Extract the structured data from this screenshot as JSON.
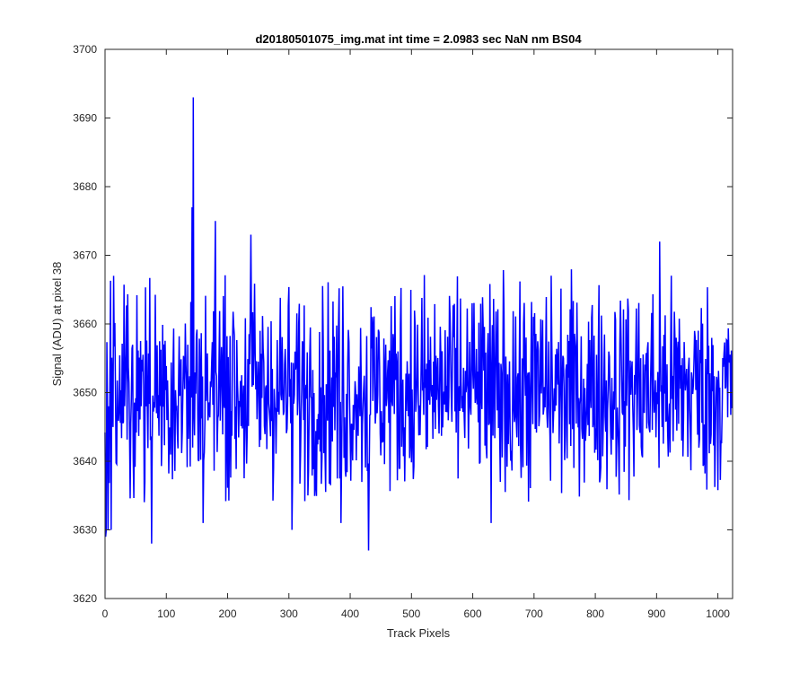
{
  "chart_data": {
    "type": "line",
    "title": "d20180501075_img.mat int time = 2.0983 sec  NaN nm BS04",
    "xlabel": "Track Pixels",
    "ylabel": "Signal (ADU) at pixel 38",
    "xlim": [
      0,
      1024
    ],
    "ylim": [
      3620,
      3700
    ],
    "xticks": [
      0,
      100,
      200,
      300,
      400,
      500,
      600,
      700,
      800,
      900,
      1000
    ],
    "yticks": [
      3620,
      3630,
      3640,
      3650,
      3660,
      3670,
      3680,
      3690,
      3700
    ],
    "grid": false,
    "box": true,
    "series": [
      {
        "color": "#0000ff",
        "n_points": 1024,
        "baseline": 3650.5,
        "noise_sd": 7.5,
        "notable_points": [
          {
            "x": 1,
            "y": 3629
          },
          {
            "x": 2,
            "y": 3630
          },
          {
            "x": 5,
            "y": 3630
          },
          {
            "x": 10,
            "y": 3630
          },
          {
            "x": 76,
            "y": 3628
          },
          {
            "x": 142,
            "y": 3677
          },
          {
            "x": 143,
            "y": 3642
          },
          {
            "x": 144,
            "y": 3693
          },
          {
            "x": 160,
            "y": 3631
          },
          {
            "x": 180,
            "y": 3675
          },
          {
            "x": 238,
            "y": 3673
          },
          {
            "x": 305,
            "y": 3630
          },
          {
            "x": 385,
            "y": 3631
          },
          {
            "x": 430,
            "y": 3627
          },
          {
            "x": 630,
            "y": 3631
          },
          {
            "x": 905,
            "y": 3672
          }
        ]
      }
    ]
  }
}
